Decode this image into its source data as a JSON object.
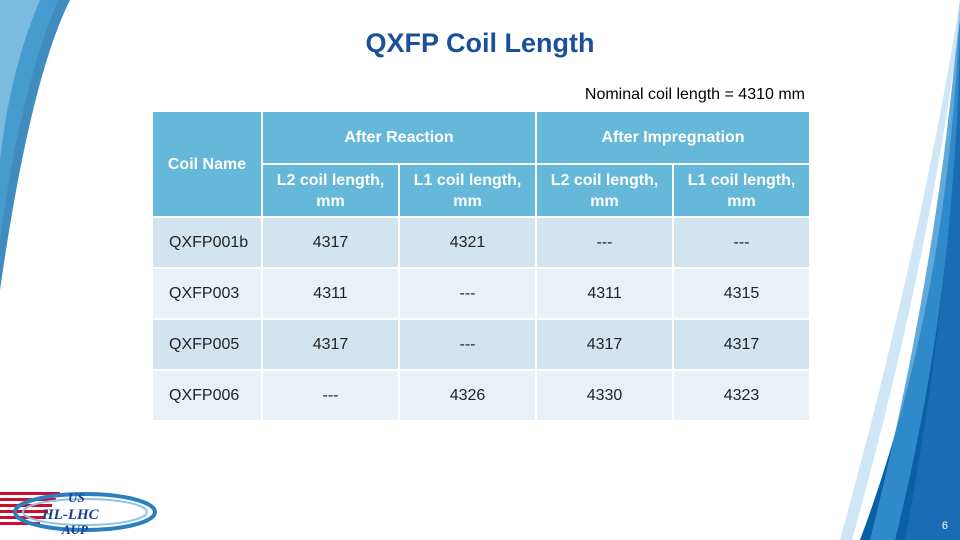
{
  "slide": {
    "title": "QXFP Coil Length",
    "nominal_note": "Nominal coil length = 4310 mm",
    "page_number": "6",
    "logo_text": [
      "US",
      "HL-LHC",
      "AUP"
    ]
  },
  "table": {
    "row_header": "Coil Name",
    "groups": [
      "After Reaction",
      "After Impregnation"
    ],
    "columns": [
      "L2 coil length, mm",
      "L1 coil length, mm",
      "L2 coil length, mm",
      "L1 coil length, mm"
    ],
    "rows": [
      [
        "QXFP001b",
        "4317",
        "4321",
        "---",
        "---"
      ],
      [
        "QXFP003",
        "4311",
        "---",
        "4311",
        "4315"
      ],
      [
        "QXFP005",
        "4317",
        "---",
        "4317",
        "4317"
      ],
      [
        "QXFP006",
        "---",
        "4326",
        "4330",
        "4323"
      ]
    ]
  },
  "colors": {
    "title": "#1a4f9c",
    "header_fill": "#65b8d9",
    "row_fill_dark": "#d2e4ef",
    "row_fill_light": "#e9f1f7",
    "swoosh": "#1f78b4"
  }
}
